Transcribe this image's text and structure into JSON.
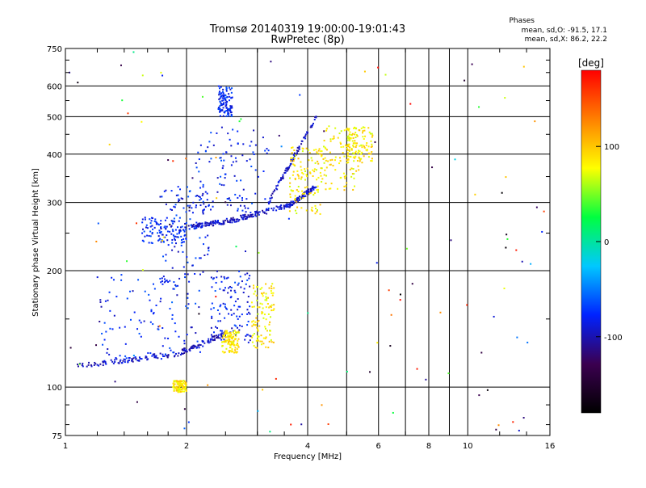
{
  "chart_data": {
    "type": "scatter",
    "title": "Tromsø 20140319 19:00:00-19:01:43",
    "subtitle": "RwPretec (8p)",
    "stats": {
      "heading": "Phases",
      "line1": "mean, sd,O: -91.5, 17.1",
      "line2": "mean, sd,X:  86.2, 22.2"
    },
    "xlabel": "Frequency [MHz]",
    "ylabel": "Stationary phase Virtual Height [km]",
    "x_scale": "log",
    "y_scale": "log",
    "xlim": [
      1,
      16
    ],
    "ylim": [
      75,
      750
    ],
    "x_ticks": [
      1,
      2,
      4,
      6,
      8,
      10,
      16
    ],
    "y_ticks": [
      75,
      100,
      200,
      300,
      400,
      500,
      600,
      750
    ],
    "x_tick_labels": [
      "1",
      "2",
      "4",
      "6",
      "8",
      "10",
      "16"
    ],
    "y_tick_labels": [
      "75",
      "100",
      "200",
      "300",
      "400",
      "500",
      "600",
      "750"
    ],
    "grid": true,
    "colorbar": {
      "label": "[deg]",
      "range": [
        -180,
        180
      ],
      "ticks": [
        100,
        0,
        -100
      ],
      "tick_labels": [
        "100",
        "0",
        "-100"
      ],
      "colors": [
        "#000000",
        "#3b0050",
        "#0022ff",
        "#00c8ff",
        "#00ff40",
        "#ffff00",
        "#ff8000",
        "#ff0000"
      ]
    },
    "series": [
      {
        "phase_deg": -95,
        "segments": [
          {
            "f0": 1.05,
            "f1": 1.9,
            "h0": 113,
            "h1": 122
          },
          {
            "f0": 1.9,
            "f1": 2.6,
            "h0": 122,
            "h1": 140
          },
          {
            "f0": 2.0,
            "f1": 2.6,
            "h0": 258,
            "h1": 270
          },
          {
            "f0": 2.6,
            "f1": 3.6,
            "h0": 270,
            "h1": 295
          },
          {
            "f0": 3.6,
            "f1": 4.2,
            "h0": 295,
            "h1": 330
          },
          {
            "f0": 3.2,
            "f1": 4.2,
            "h0": 300,
            "h1": 500
          }
        ]
      },
      {
        "phase_deg": -80,
        "clusters": [
          {
            "f0": 1.2,
            "f1": 2.2,
            "h0": 118,
            "h1": 200
          },
          {
            "f0": 1.7,
            "f1": 2.3,
            "h0": 180,
            "h1": 330
          },
          {
            "f0": 1.55,
            "f1": 2.0,
            "h0": 235,
            "h1": 275
          },
          {
            "f0": 2.1,
            "f1": 3.2,
            "h0": 280,
            "h1": 470
          },
          {
            "f0": 2.3,
            "f1": 2.9,
            "h0": 130,
            "h1": 200
          },
          {
            "f0": 2.4,
            "f1": 2.6,
            "h0": 500,
            "h1": 600
          }
        ]
      },
      {
        "phase_deg": 85,
        "clusters": [
          {
            "f0": 2.45,
            "f1": 2.7,
            "h0": 122,
            "h1": 140
          },
          {
            "f0": 2.9,
            "f1": 3.3,
            "h0": 125,
            "h1": 185
          },
          {
            "f0": 3.6,
            "f1": 4.3,
            "h0": 280,
            "h1": 420
          },
          {
            "f0": 4.3,
            "f1": 5.4,
            "h0": 320,
            "h1": 480
          },
          {
            "f0": 5.0,
            "f1": 5.8,
            "h0": 380,
            "h1": 470
          },
          {
            "f0": 1.85,
            "f1": 2.0,
            "h0": 97,
            "h1": 104
          }
        ]
      }
    ]
  }
}
